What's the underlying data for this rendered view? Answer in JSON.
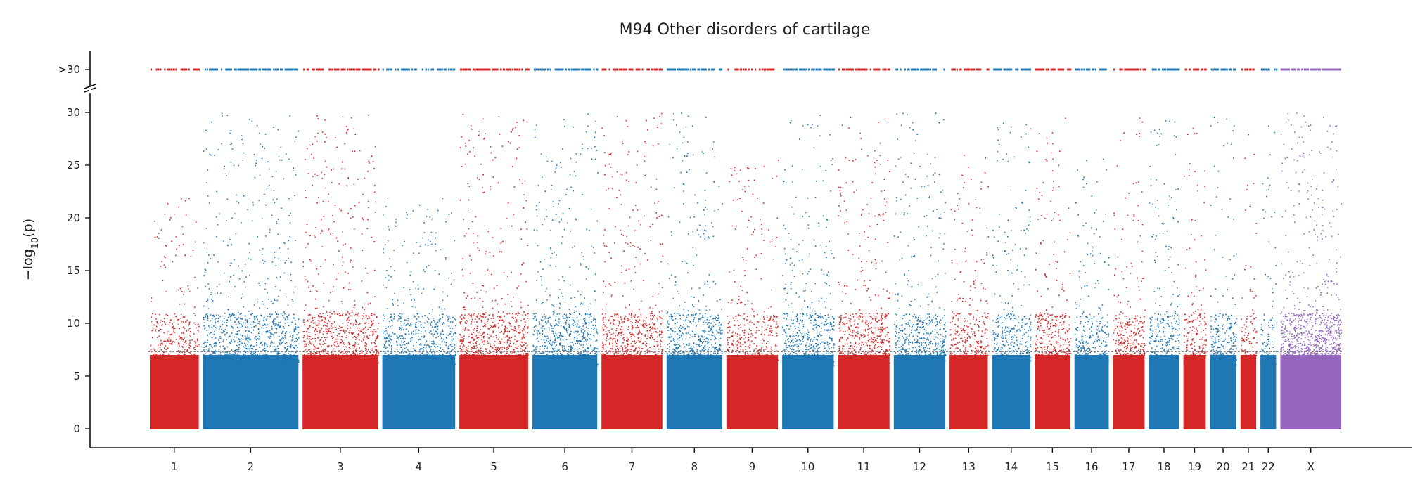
{
  "chart_data": {
    "type": "scatter",
    "title": "M94 Other disorders of cartilage",
    "xlabel": "",
    "ylabel": "−log10(p)",
    "ylabel_parts": {
      "pre": "−log",
      "sub": "10",
      "post": "(p)"
    },
    "ylim": [
      0,
      30
    ],
    "yticks": [
      "0",
      "5",
      "10",
      "15",
      "20",
      "25",
      "30"
    ],
    "overflow_label": ">30",
    "overflow_threshold": 30,
    "significance_threshold": 7.3,
    "grid": false,
    "legend": "none",
    "colors": {
      "odd": "#d62728",
      "even": "#1f77b4",
      "x": "#9467bd",
      "threshold": "#888888"
    },
    "chromosomes": [
      {
        "label": "1",
        "start": 0.0,
        "end": 4.0,
        "peak": 22,
        "density": 0.6,
        "color": "odd"
      },
      {
        "label": "2",
        "start": 4.0,
        "end": 11.5,
        "peak": 30,
        "density": 1.0,
        "color": "even"
      },
      {
        "label": "3",
        "start": 11.5,
        "end": 17.5,
        "peak": 30,
        "density": 1.0,
        "color": "odd"
      },
      {
        "label": "4",
        "start": 17.5,
        "end": 23.3,
        "peak": 22,
        "density": 0.8,
        "color": "even"
      },
      {
        "label": "5",
        "start": 23.3,
        "end": 28.8,
        "peak": 30,
        "density": 1.0,
        "color": "odd"
      },
      {
        "label": "6",
        "start": 28.8,
        "end": 34.0,
        "peak": 30,
        "density": 1.0,
        "color": "even"
      },
      {
        "label": "7",
        "start": 34.0,
        "end": 38.9,
        "peak": 30,
        "density": 1.0,
        "color": "odd"
      },
      {
        "label": "8",
        "start": 38.9,
        "end": 43.4,
        "peak": 30,
        "density": 1.0,
        "color": "even"
      },
      {
        "label": "9",
        "start": 43.4,
        "end": 47.6,
        "peak": 26,
        "density": 0.7,
        "color": "odd"
      },
      {
        "label": "10",
        "start": 47.6,
        "end": 51.8,
        "peak": 30,
        "density": 1.0,
        "color": "even"
      },
      {
        "label": "11",
        "start": 51.8,
        "end": 56.0,
        "peak": 30,
        "density": 1.0,
        "color": "odd"
      },
      {
        "label": "12",
        "start": 56.0,
        "end": 60.2,
        "peak": 30,
        "density": 1.0,
        "color": "even"
      },
      {
        "label": "13",
        "start": 60.2,
        "end": 63.4,
        "peak": 26,
        "density": 0.8,
        "color": "odd"
      },
      {
        "label": "14",
        "start": 63.4,
        "end": 66.6,
        "peak": 30,
        "density": 0.9,
        "color": "even"
      },
      {
        "label": "15",
        "start": 66.6,
        "end": 69.6,
        "peak": 30,
        "density": 0.9,
        "color": "odd"
      },
      {
        "label": "16",
        "start": 69.6,
        "end": 72.5,
        "peak": 26,
        "density": 0.8,
        "color": "even"
      },
      {
        "label": "17",
        "start": 72.5,
        "end": 75.2,
        "peak": 30,
        "density": 0.9,
        "color": "odd"
      },
      {
        "label": "18",
        "start": 75.2,
        "end": 77.8,
        "peak": 30,
        "density": 0.9,
        "color": "even"
      },
      {
        "label": "19",
        "start": 77.8,
        "end": 79.8,
        "peak": 29,
        "density": 0.8,
        "color": "odd"
      },
      {
        "label": "20",
        "start": 79.8,
        "end": 82.1,
        "peak": 30,
        "density": 0.8,
        "color": "even"
      },
      {
        "label": "21",
        "start": 82.1,
        "end": 83.6,
        "peak": 28,
        "density": 0.6,
        "color": "odd"
      },
      {
        "label": "22",
        "start": 83.6,
        "end": 85.1,
        "peak": 30,
        "density": 0.6,
        "color": "even"
      },
      {
        "label": "X",
        "start": 85.1,
        "end": 90.0,
        "peak": 30,
        "density": 1.4,
        "color": "x"
      }
    ],
    "xlim": [
      0,
      90
    ]
  }
}
